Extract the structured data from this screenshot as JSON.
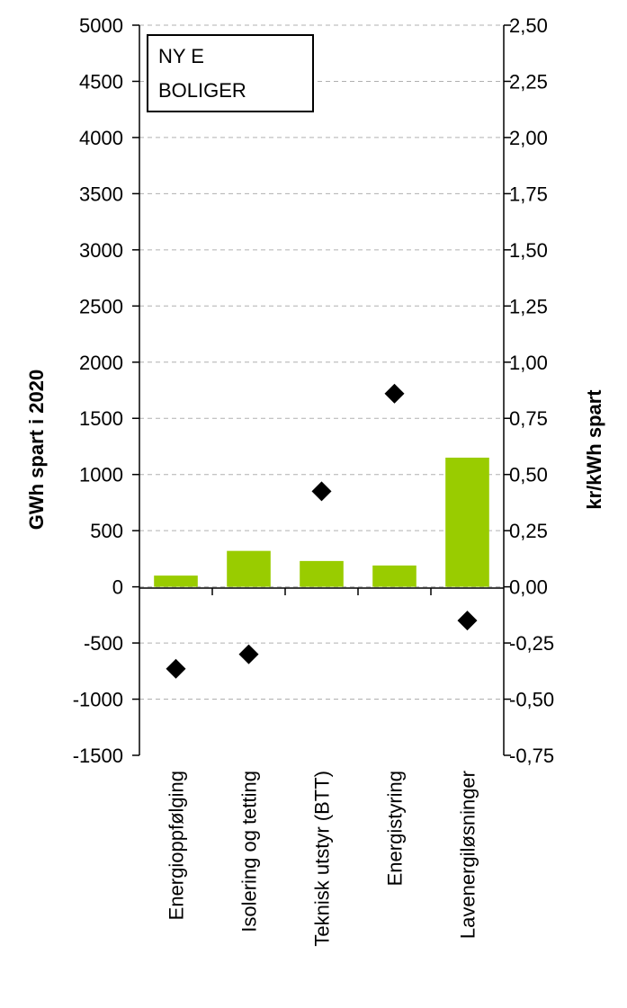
{
  "chart_data": {
    "type": "bar",
    "annotation_lines": [
      "NY E",
      "BOLIGER"
    ],
    "categories": [
      "Energioppfølging",
      "Isolering og tetting",
      "Teknisk utstyr (BTT)",
      "Energistyring",
      "Lavenergiløsninger"
    ],
    "series": [
      {
        "axis": "left",
        "type": "bar",
        "values": [
          100,
          320,
          230,
          190,
          1150
        ],
        "color": "#99cc00"
      },
      {
        "axis": "right",
        "type": "scatter",
        "marker": "diamond",
        "values": [
          -0.365,
          -0.3,
          0.425,
          0.86,
          -0.15
        ],
        "color": "#000000"
      }
    ],
    "ylabel": "GWh spart i 2020",
    "ylabel_right": "kr/kWh spart",
    "ylim": [
      -1500,
      5000
    ],
    "ylim_right": [
      -0.75,
      2.5
    ],
    "yticks": [
      "5000",
      "4500",
      "4000",
      "3500",
      "3000",
      "2500",
      "2000",
      "1500",
      "1000",
      "500",
      "0",
      "-500",
      "-1000",
      "-1500"
    ],
    "yticks_right": [
      "2,50",
      "2,25",
      "2,00",
      "1,75",
      "1,50",
      "1,25",
      "1,00",
      "0,75",
      "0,50",
      "0,25",
      "0,00",
      "-0,25",
      "-0,50",
      "-0,75"
    ],
    "grid": true
  }
}
